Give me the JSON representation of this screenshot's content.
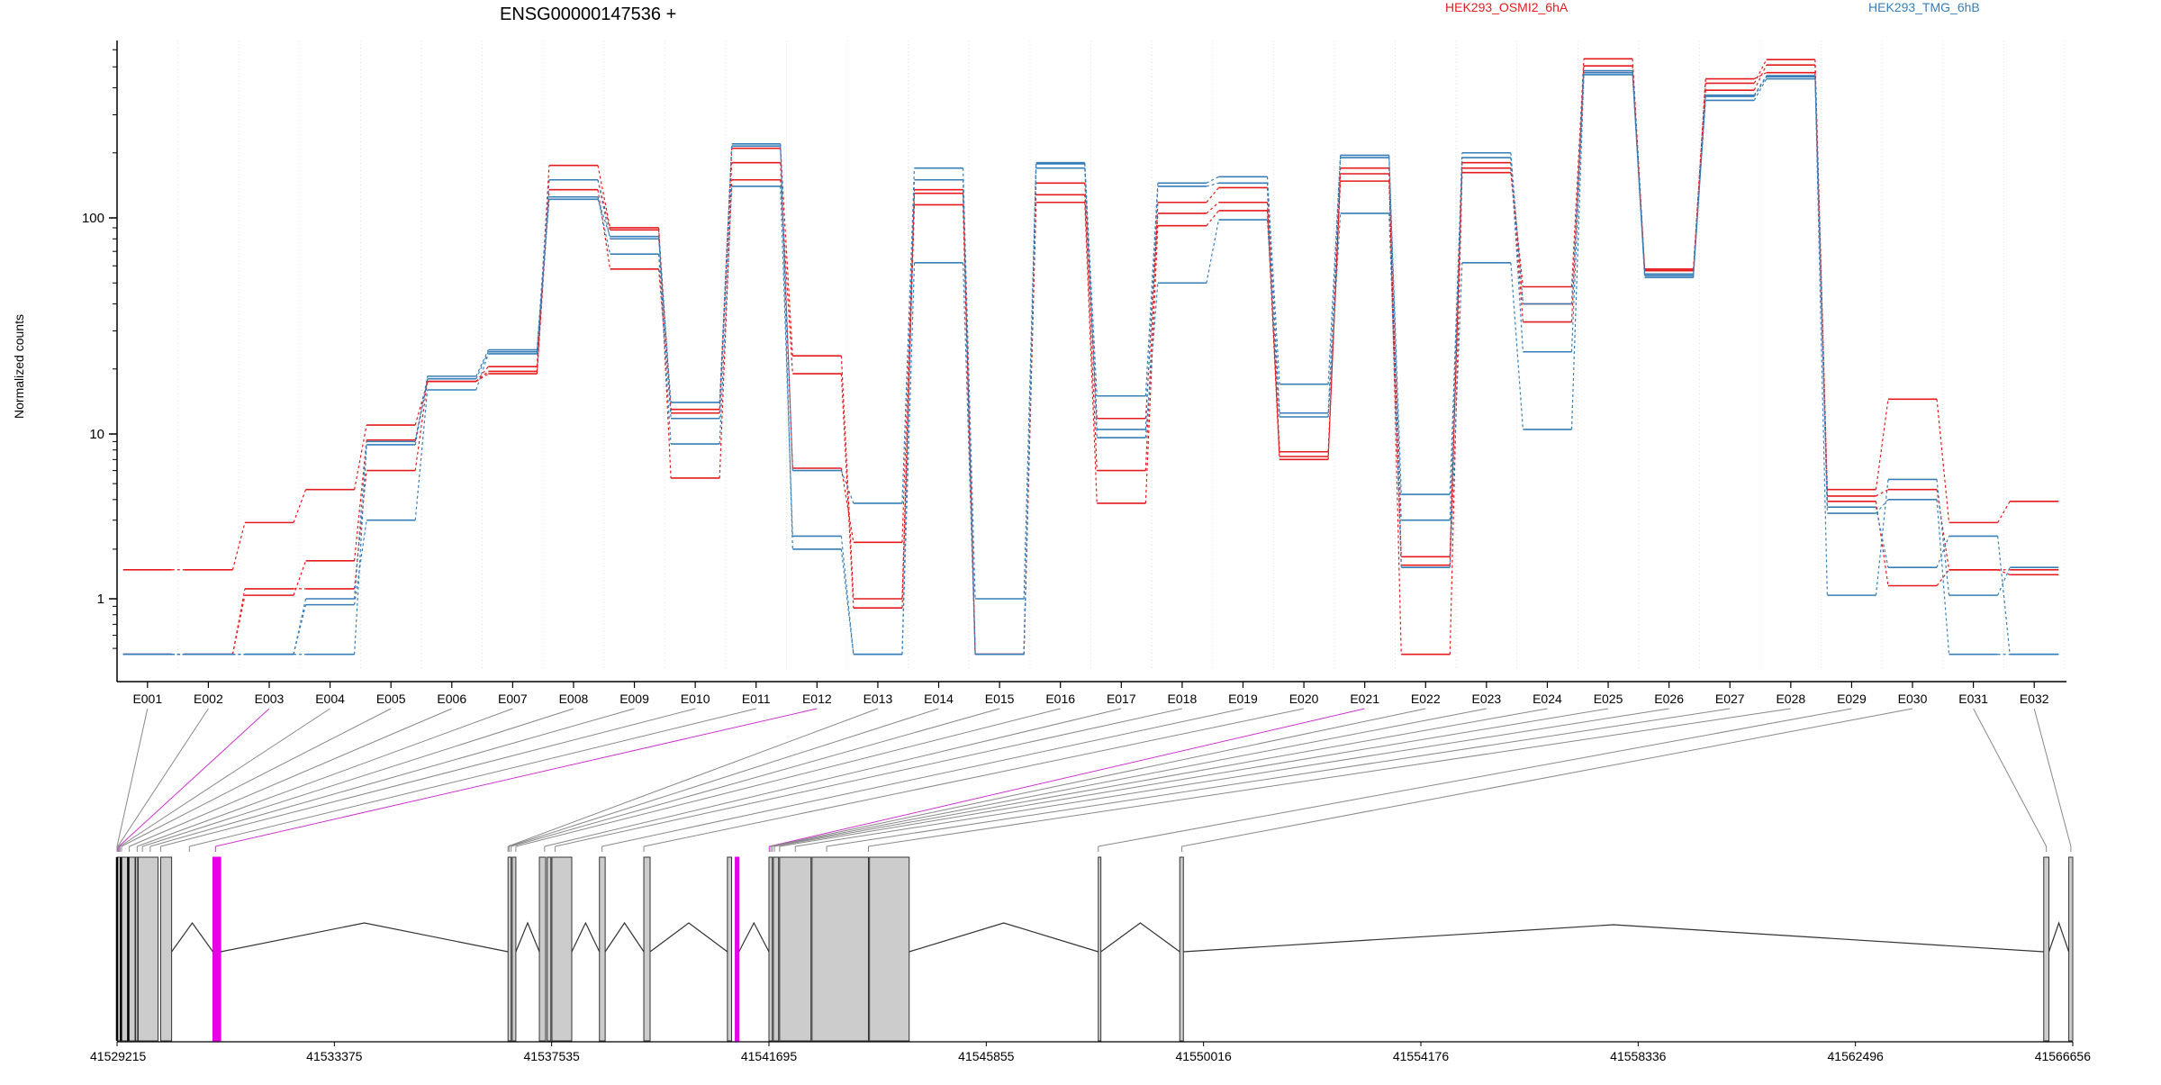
{
  "chart_data": {
    "type": "line",
    "title": "ENSG00000147536 +",
    "ylabel": "Normalized counts",
    "xlabel": "",
    "yscale": "log",
    "ylim": [
      0.43,
      700
    ],
    "yticks": [
      1,
      10,
      100
    ],
    "ytick_labels": [
      "1",
      "10",
      "100"
    ],
    "grid": "vertical dotted",
    "legend": "top",
    "categories": [
      "E001",
      "E002",
      "E003",
      "E004",
      "E005",
      "E006",
      "E007",
      "E008",
      "E009",
      "E010",
      "E011",
      "E012",
      "E013",
      "E014",
      "E015",
      "E016",
      "E017",
      "E018",
      "E019",
      "E020",
      "E021",
      "E022",
      "E023",
      "E024",
      "E025",
      "E026",
      "E027",
      "E028",
      "E029",
      "E030",
      "E031",
      "E032"
    ],
    "series": [
      {
        "name": "HEK293_OSMI2_6hA",
        "color": "#e41a1c",
        "values": [
          0.46,
          0.46,
          1.05,
          1.7,
          9.2,
          17.5,
          19.5,
          150,
          88,
          13,
          210,
          23,
          1.0,
          130,
          0.46,
          145,
          11.8,
          105,
          118,
          7.3,
          170,
          0.46,
          162,
          48,
          545,
          58,
          420,
          540,
          4.6,
          14.5,
          2.9,
          3.9
        ]
      },
      {
        "name": "",
        "color": "#e41a1c",
        "values": [
          1.5,
          1.5,
          2.9,
          4.6,
          11,
          17.5,
          20.5,
          175,
          90,
          5.4,
          150,
          19,
          0.88,
          115,
          0.46,
          128,
          6,
          118,
          138,
          7.8,
          148,
          1.6,
          180,
          40,
          470,
          57,
          440,
          470,
          4.2,
          4.6,
          1.5,
          1.5
        ]
      },
      {
        "name": "",
        "color": "#e41a1c",
        "values": [
          0.46,
          0.46,
          1.15,
          1.15,
          6,
          17.5,
          19,
          135,
          58,
          12.5,
          180,
          6.2,
          2.2,
          135,
          0.46,
          118,
          3.8,
          92,
          108,
          7,
          160,
          1.8,
          170,
          33,
          505,
          57,
          390,
          510,
          3.9,
          1.2,
          1.5,
          1.4
        ]
      },
      {
        "name": "HEK293_TMG_6hB",
        "color": "#377eb8",
        "values": [
          0.46,
          0.46,
          0.46,
          1.0,
          9,
          18.5,
          24.5,
          150,
          80,
          14,
          220,
          6,
          3.8,
          170,
          1.0,
          180,
          15,
          145,
          155,
          17,
          195,
          4.3,
          200,
          40,
          480,
          55,
          350,
          440,
          1.05,
          5.3,
          1.05,
          1.55
        ]
      },
      {
        "name": "",
        "color": "#377eb8",
        "values": [
          0.46,
          0.46,
          0.46,
          0.92,
          3,
          16,
          23.5,
          125,
          68,
          8.7,
          140,
          2.4,
          0.46,
          62,
          0.46,
          178,
          9.5,
          50,
          98,
          12,
          105,
          1.55,
          62,
          10.5,
          460,
          54,
          365,
          450,
          3.6,
          1.55,
          2.4,
          0.46
        ]
      },
      {
        "name": "",
        "color": "#377eb8",
        "values": [
          0.46,
          0.46,
          0.46,
          0.46,
          8.6,
          18,
          24,
          122,
          82,
          11.8,
          215,
          2.0,
          0.46,
          150,
          0.46,
          170,
          10.5,
          140,
          145,
          12.5,
          190,
          3.0,
          190,
          24,
          470,
          53,
          370,
          455,
          3.3,
          4.0,
          0.46,
          0.46
        ]
      }
    ],
    "exon_track": {
      "labels": [
        "41529215",
        "41533375",
        "41537535",
        "41541695",
        "41545855",
        "41550016",
        "41554176",
        "41558336",
        "41562496",
        "41566656"
      ],
      "highlight_exons": [
        "E003",
        "E012",
        "E021"
      ],
      "highlight_color": "#e600e6"
    }
  }
}
